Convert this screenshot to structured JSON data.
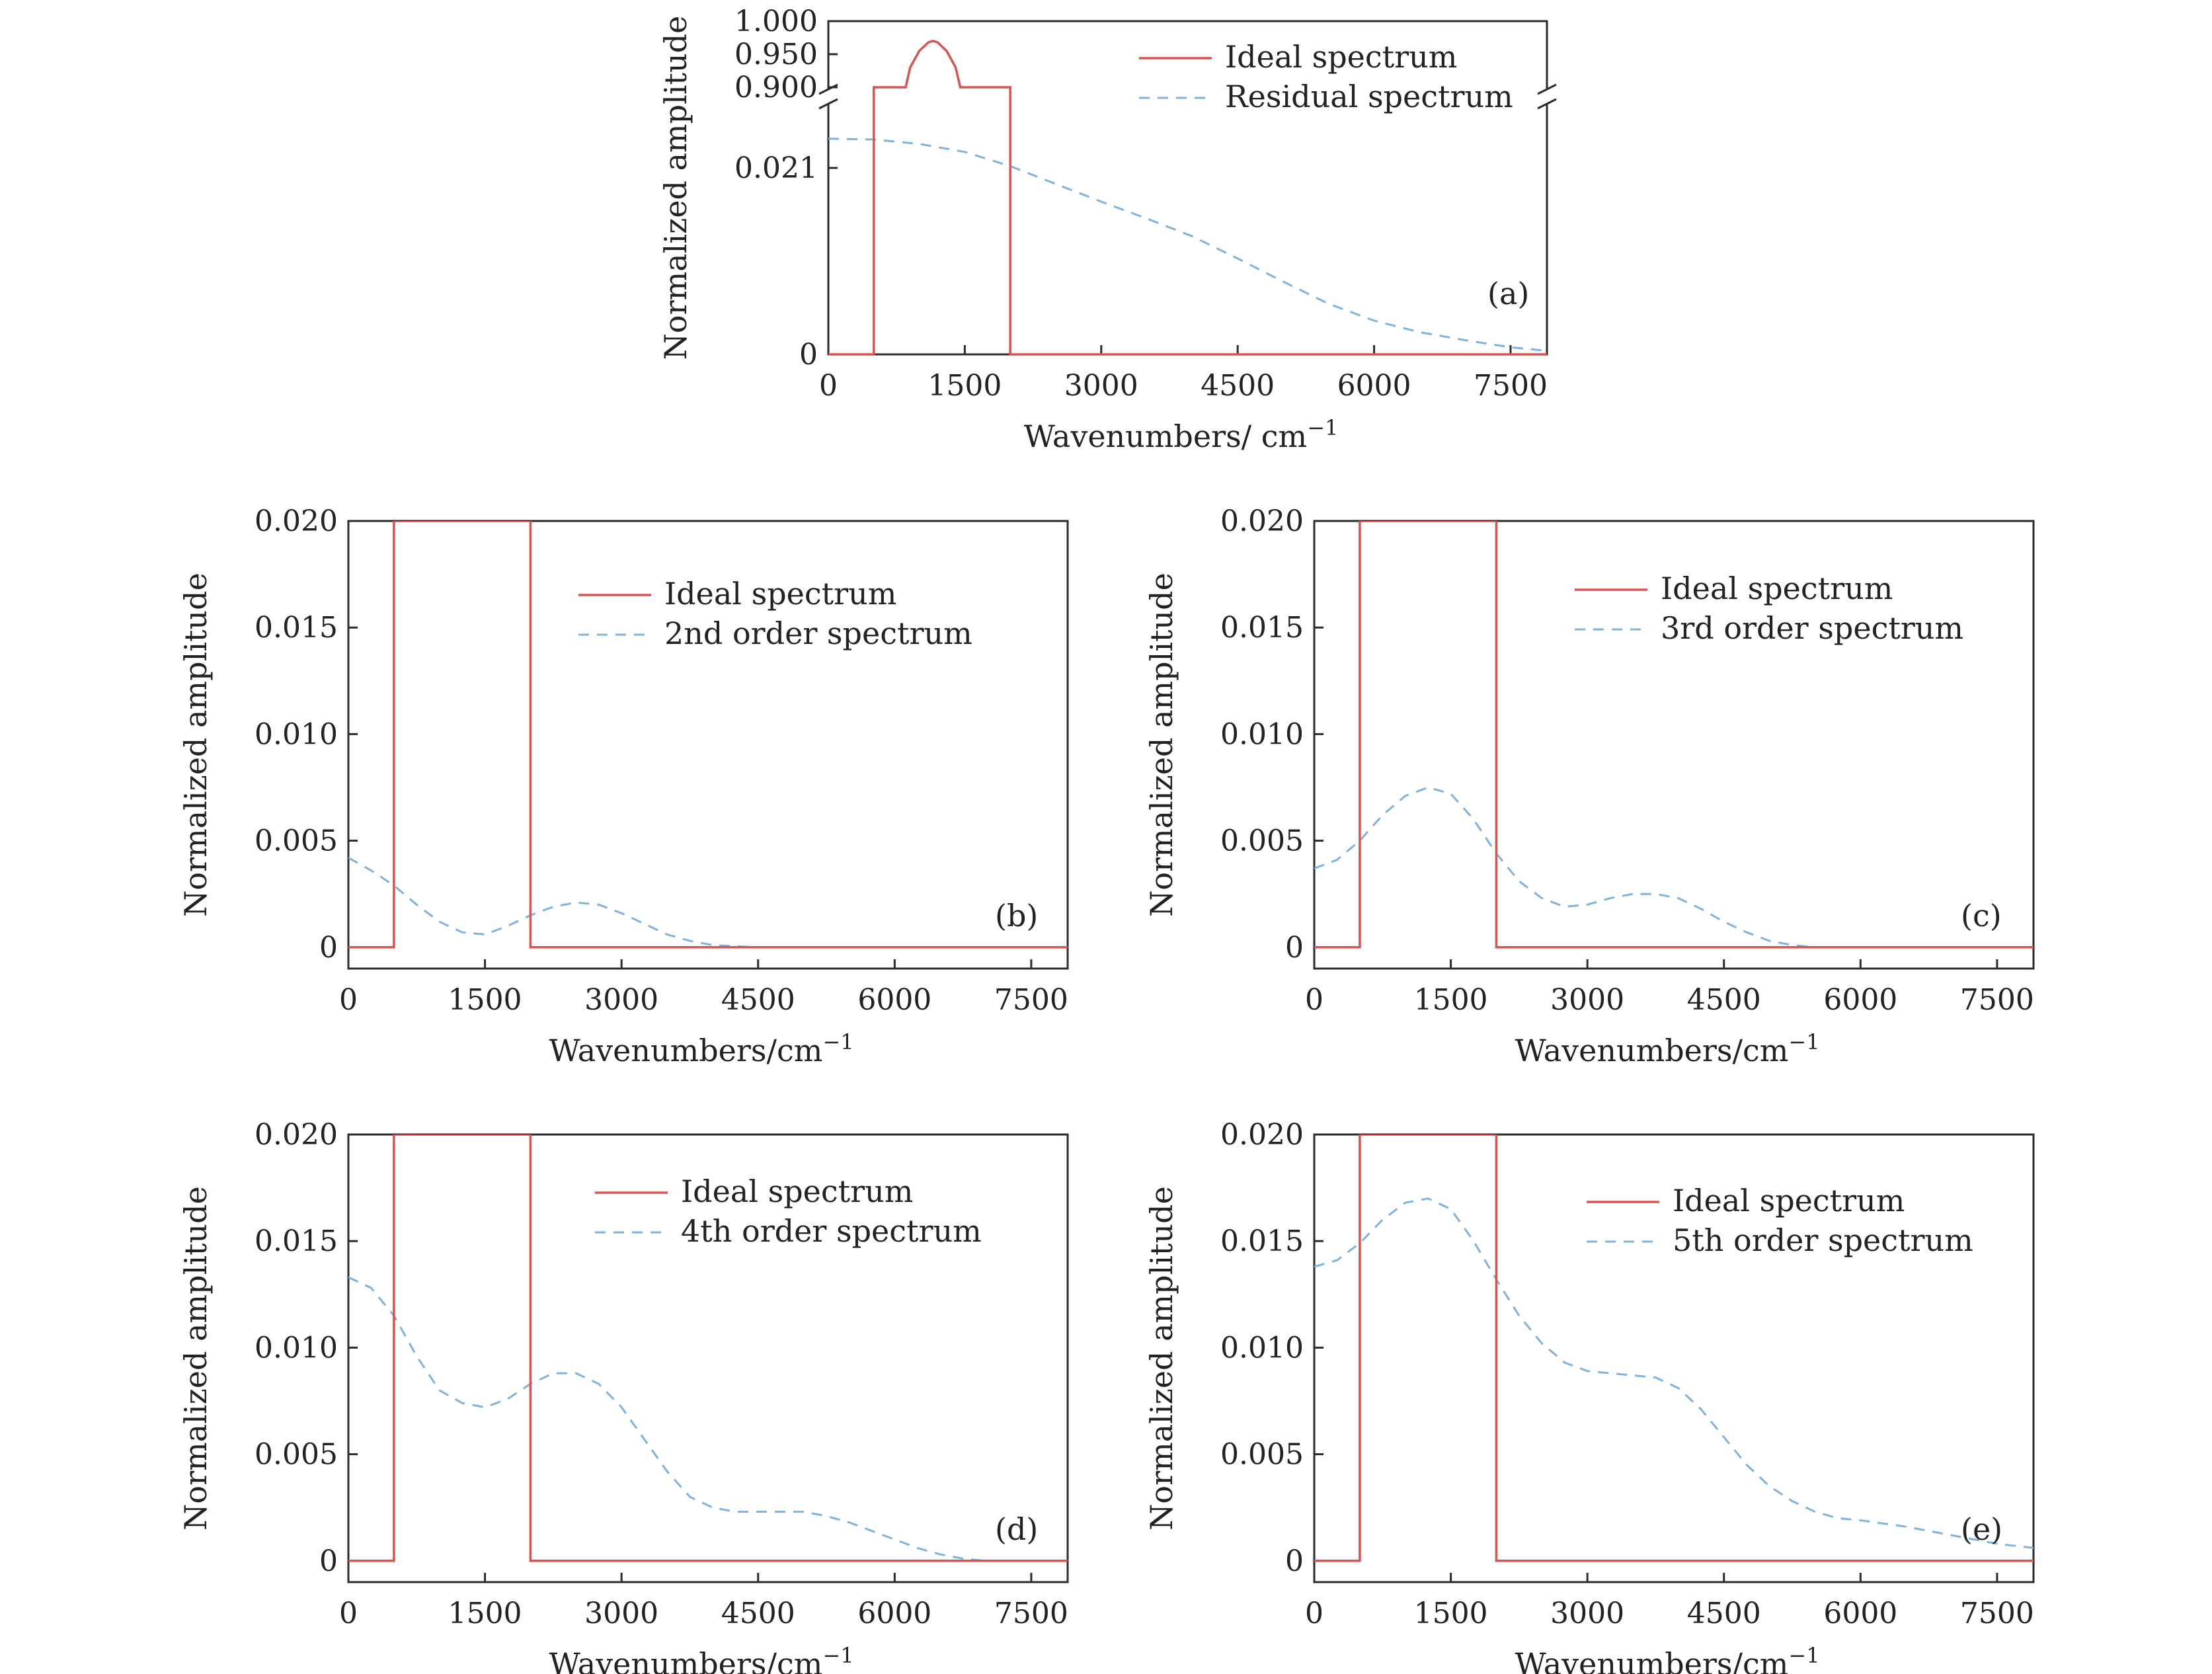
{
  "chart_data": [
    {
      "id": "a",
      "type": "line",
      "panel_label": "(a)",
      "xlabel": "Wavenumbers/ cm",
      "xlabel_sup": "−1",
      "ylabel": "Normalized amplitude",
      "xlim": [
        0,
        7900
      ],
      "xticks": [
        0,
        1500,
        3000,
        4500,
        6000,
        7500
      ],
      "broken_axis": true,
      "upper_ylim": [
        0.9,
        1.0
      ],
      "upper_yticks": [
        "1.000",
        "0.950",
        "0.900"
      ],
      "lower_ylim": [
        0,
        0.028
      ],
      "lower_yticks": [
        "0.021",
        "0"
      ],
      "legend_position": "top-right",
      "colors": {
        "ideal": "#d9534f",
        "model": "#7fb2dd"
      },
      "series": [
        {
          "name": "Ideal spectrum",
          "style": "solid",
          "x": [
            0,
            500,
            500,
            850,
            900,
            1000,
            1100,
            1150,
            1200,
            1300,
            1400,
            1450,
            2000,
            2000,
            7900
          ],
          "y": [
            0,
            0,
            0.9,
            0.9,
            0.93,
            0.955,
            0.968,
            0.97,
            0.968,
            0.955,
            0.93,
            0.9,
            0.9,
            0,
            0
          ]
        },
        {
          "name": "Residual spectrum",
          "style": "dashed",
          "x": [
            0,
            500,
            1000,
            1500,
            2000,
            2500,
            3000,
            3500,
            4000,
            4500,
            5000,
            5500,
            6000,
            6500,
            7000,
            7500,
            7900
          ],
          "y": [
            0.0243,
            0.0242,
            0.0237,
            0.0228,
            0.0212,
            0.0192,
            0.0172,
            0.0153,
            0.0133,
            0.0108,
            0.0082,
            0.0057,
            0.0038,
            0.0025,
            0.0016,
            0.0008,
            0.0004
          ]
        }
      ]
    },
    {
      "id": "b",
      "type": "line",
      "panel_label": "(b)",
      "xlabel": "Wavenumbers/cm",
      "xlabel_sup": "−1",
      "ylabel": "Normalized amplitude",
      "xlim": [
        0,
        7900
      ],
      "xticks": [
        0,
        1500,
        3000,
        4500,
        6000,
        7500
      ],
      "ylim": [
        -0.001,
        0.02
      ],
      "yticks": [
        "0",
        "0.005",
        "0.010",
        "0.015",
        "0.020"
      ],
      "legend_position": "top-center",
      "colors": {
        "ideal": "#d9534f",
        "model": "#7fb2dd"
      },
      "series": [
        {
          "name": "Ideal spectrum",
          "style": "solid",
          "x": [
            0,
            500,
            500,
            2000,
            2000,
            7900
          ],
          "y": [
            0,
            0,
            0.02,
            0.02,
            0,
            0
          ]
        },
        {
          "name": "2nd order spectrum",
          "style": "dashed",
          "x": [
            0,
            250,
            500,
            750,
            1000,
            1250,
            1500,
            1750,
            2000,
            2250,
            2500,
            2750,
            3000,
            3250,
            3500,
            3750,
            4000,
            4500,
            5000,
            6000,
            7000,
            7900
          ],
          "y": [
            0.0042,
            0.0036,
            0.0029,
            0.002,
            0.0012,
            0.0007,
            0.0006,
            0.001,
            0.0015,
            0.0019,
            0.0021,
            0.002,
            0.0016,
            0.0011,
            0.0006,
            0.0003,
            0.0001,
            0.0,
            0.0,
            0.0,
            0.0,
            0.0
          ]
        }
      ]
    },
    {
      "id": "c",
      "type": "line",
      "panel_label": "(c)",
      "xlabel": "Wavenumbers/cm",
      "xlabel_sup": "−1",
      "ylabel": "Normalized amplitude",
      "xlim": [
        0,
        7900
      ],
      "xticks": [
        0,
        1500,
        3000,
        4500,
        6000,
        7500
      ],
      "ylim": [
        -0.001,
        0.02
      ],
      "yticks": [
        "0",
        "0.005",
        "0.010",
        "0.015",
        "0.020"
      ],
      "legend_position": "top-center",
      "colors": {
        "ideal": "#d9534f",
        "model": "#7fb2dd"
      },
      "series": [
        {
          "name": "Ideal spectrum",
          "style": "solid",
          "x": [
            0,
            500,
            500,
            2000,
            2000,
            7900
          ],
          "y": [
            0,
            0,
            0.02,
            0.02,
            0,
            0
          ]
        },
        {
          "name": "3rd order spectrum",
          "style": "dashed",
          "x": [
            0,
            250,
            500,
            750,
            1000,
            1250,
            1500,
            1750,
            2000,
            2250,
            2500,
            2750,
            3000,
            3250,
            3500,
            3750,
            4000,
            4250,
            4500,
            4750,
            5000,
            5250,
            5500,
            6000,
            7000,
            7900
          ],
          "y": [
            0.0037,
            0.0041,
            0.005,
            0.0062,
            0.0071,
            0.0075,
            0.0072,
            0.006,
            0.0044,
            0.0031,
            0.0023,
            0.0019,
            0.002,
            0.0023,
            0.0025,
            0.0025,
            0.0023,
            0.0018,
            0.0012,
            0.0007,
            0.0003,
            0.0001,
            0.0,
            0.0,
            0.0,
            0.0
          ]
        }
      ]
    },
    {
      "id": "d",
      "type": "line",
      "panel_label": "(d)",
      "xlabel": "Wavenumbers/cm",
      "xlabel_sup": "−1",
      "ylabel": "Normalized amplitude",
      "xlim": [
        0,
        7900
      ],
      "xticks": [
        0,
        1500,
        3000,
        4500,
        6000,
        7500
      ],
      "ylim": [
        -0.001,
        0.02
      ],
      "yticks": [
        "0",
        "0.005",
        "0.010",
        "0.015",
        "0.020"
      ],
      "legend_position": "top-center",
      "colors": {
        "ideal": "#d9534f",
        "model": "#7fb2dd"
      },
      "series": [
        {
          "name": "Ideal spectrum",
          "style": "solid",
          "x": [
            0,
            500,
            500,
            2000,
            2000,
            7900
          ],
          "y": [
            0,
            0,
            0.02,
            0.02,
            0,
            0
          ]
        },
        {
          "name": "4th order spectrum",
          "style": "dashed",
          "x": [
            0,
            250,
            500,
            750,
            1000,
            1250,
            1500,
            1750,
            2000,
            2250,
            2500,
            2750,
            3000,
            3250,
            3500,
            3750,
            4000,
            4250,
            4500,
            4750,
            5000,
            5250,
            5500,
            5750,
            6000,
            6250,
            6500,
            6750,
            7000,
            7500,
            7900
          ],
          "y": [
            0.0133,
            0.0128,
            0.0115,
            0.0096,
            0.008,
            0.0074,
            0.0072,
            0.0076,
            0.0083,
            0.0088,
            0.0088,
            0.0083,
            0.0072,
            0.0057,
            0.0042,
            0.003,
            0.0025,
            0.0023,
            0.0023,
            0.0023,
            0.0023,
            0.0021,
            0.0018,
            0.0014,
            0.001,
            0.0006,
            0.0003,
            0.0001,
            0.0,
            0.0,
            0.0
          ]
        }
      ]
    },
    {
      "id": "e",
      "type": "line",
      "panel_label": "(e)",
      "xlabel": "Wavenumbers/cm",
      "xlabel_sup": "−1",
      "ylabel": "Normalized amplitude",
      "xlim": [
        0,
        7900
      ],
      "xticks": [
        0,
        1500,
        3000,
        4500,
        6000,
        7500
      ],
      "ylim": [
        -0.001,
        0.02
      ],
      "yticks": [
        "0",
        "0.005",
        "0.010",
        "0.015",
        "0.020"
      ],
      "legend_position": "top-center",
      "colors": {
        "ideal": "#d9534f",
        "model": "#7fb2dd"
      },
      "series": [
        {
          "name": "Ideal spectrum",
          "style": "solid",
          "x": [
            0,
            500,
            500,
            2000,
            2000,
            7900
          ],
          "y": [
            0,
            0,
            0.02,
            0.02,
            0,
            0
          ]
        },
        {
          "name": "5th order spectrum",
          "style": "dashed",
          "x": [
            0,
            250,
            500,
            750,
            1000,
            1250,
            1500,
            1750,
            2000,
            2250,
            2500,
            2750,
            3000,
            3250,
            3500,
            3750,
            4000,
            4250,
            4500,
            4750,
            5000,
            5250,
            5500,
            5750,
            6000,
            6500,
            7000,
            7500,
            7900
          ],
          "y": [
            0.0138,
            0.0141,
            0.0149,
            0.016,
            0.0168,
            0.017,
            0.0165,
            0.015,
            0.0132,
            0.0115,
            0.0102,
            0.0093,
            0.0089,
            0.0088,
            0.0087,
            0.0086,
            0.0081,
            0.0071,
            0.0058,
            0.0045,
            0.0035,
            0.0028,
            0.0023,
            0.002,
            0.0019,
            0.0016,
            0.0012,
            0.0008,
            0.0006
          ]
        }
      ]
    }
  ]
}
